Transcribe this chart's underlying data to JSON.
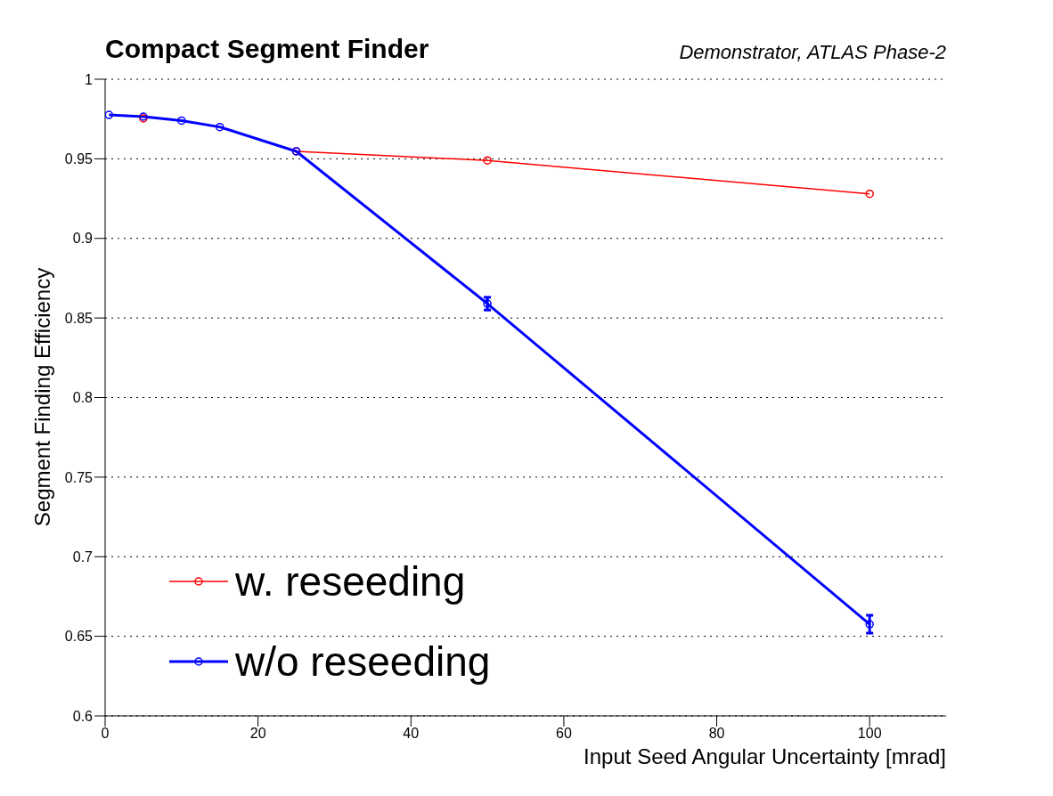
{
  "chart_data": {
    "type": "line",
    "title": "Compact Segment Finder",
    "subtitle": "Demonstrator, ATLAS Phase-2",
    "xlabel": "Input Seed Angular Uncertainty [mrad]",
    "ylabel": "Segment Finding Efficiency",
    "x": [
      0.5,
      5,
      10,
      15,
      25,
      50,
      100
    ],
    "series": [
      {
        "name": "w. reseeding",
        "color": "#ff0000",
        "values": [
          null,
          0.9754,
          null,
          null,
          0.9547,
          0.949,
          0.928
        ]
      },
      {
        "name": "w/o reseeding",
        "color": "#0000ff",
        "values": [
          0.9776,
          0.9765,
          0.974,
          0.97,
          0.9547,
          0.859,
          0.6576
        ],
        "errors": [
          null,
          null,
          null,
          null,
          null,
          0.004,
          0.0056
        ]
      }
    ],
    "xlim": [
      0,
      110
    ],
    "xticks": [
      0,
      20,
      40,
      60,
      80,
      100
    ],
    "ylim": [
      0.6,
      1
    ],
    "yticks": [
      0.6,
      0.65,
      0.7,
      0.75,
      0.8,
      0.85,
      0.9,
      0.95,
      1
    ],
    "grid": "y",
    "legend": "bottom left",
    "marker": "circle",
    "line_style": "solid"
  }
}
